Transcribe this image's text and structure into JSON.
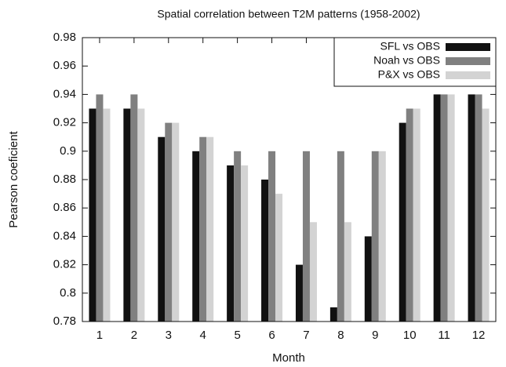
{
  "chart_data": {
    "type": "bar",
    "title": "Spatial correlation between T2M patterns (1958-2002)",
    "x_label": "Month",
    "y_label": "Pearson coeficient",
    "categories": [
      "1",
      "2",
      "3",
      "4",
      "5",
      "6",
      "7",
      "8",
      "9",
      "10",
      "11",
      "12"
    ],
    "series": [
      {
        "name": "SFL vs OBS",
        "color": "#111111",
        "values": [
          0.93,
          0.93,
          0.91,
          0.9,
          0.89,
          0.88,
          0.82,
          0.79,
          0.84,
          0.92,
          0.94,
          0.94
        ]
      },
      {
        "name": "Noah vs OBS",
        "color": "#808080",
        "values": [
          0.94,
          0.94,
          0.92,
          0.91,
          0.9,
          0.9,
          0.9,
          0.9,
          0.9,
          0.93,
          0.94,
          0.94
        ]
      },
      {
        "name": "P&X vs OBS",
        "color": "#d3d3d3",
        "values": [
          0.93,
          0.93,
          0.92,
          0.91,
          0.89,
          0.87,
          0.85,
          0.85,
          0.9,
          0.93,
          0.94,
          0.93
        ]
      }
    ],
    "ylim": [
      0.78,
      0.98
    ],
    "yticks": [
      0.78,
      0.8,
      0.82,
      0.84,
      0.86,
      0.88,
      0.9,
      0.92,
      0.94,
      0.96,
      0.98
    ],
    "legend": "upper right",
    "grid": false
  }
}
